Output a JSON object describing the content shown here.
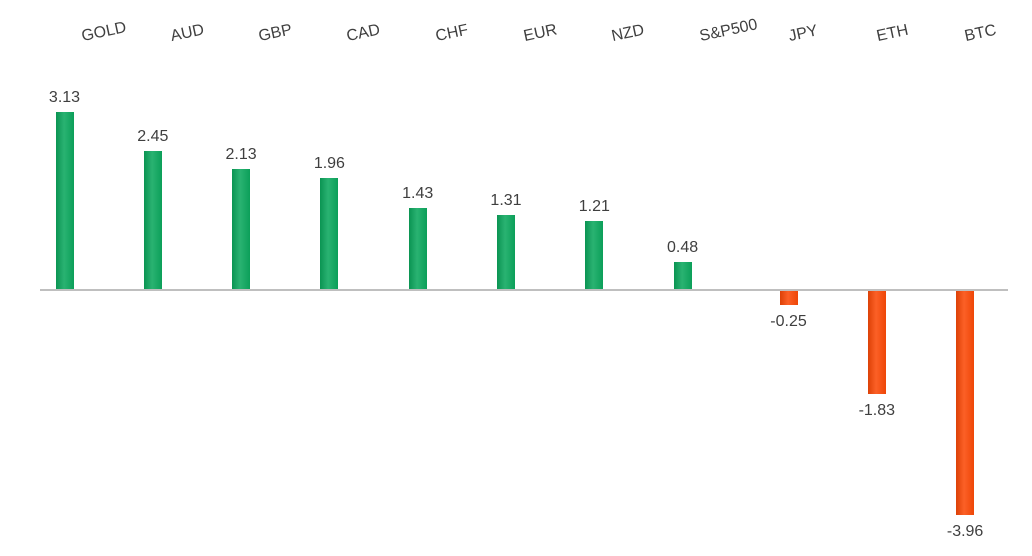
{
  "chart_data": {
    "type": "bar",
    "title": "",
    "xlabel": "",
    "ylabel": "",
    "categories": [
      "GOLD",
      "AUD",
      "GBP",
      "CAD",
      "CHF",
      "EUR",
      "NZD",
      "S&P500",
      "JPY",
      "ETH",
      "BTC"
    ],
    "values": [
      3.13,
      2.45,
      2.13,
      1.96,
      1.43,
      1.31,
      1.21,
      0.48,
      -0.25,
      -1.83,
      -3.96
    ],
    "value_labels": [
      "3.13",
      "2.45",
      "2.13",
      "1.96",
      "1.43",
      "1.31",
      "1.21",
      "0.48",
      "-0.25",
      "-1.83",
      "-3.96"
    ],
    "baseline": 0,
    "ylim": [
      -4.5,
      3.5
    ],
    "grid": false,
    "legend_position": "none",
    "category_axis_position": "top",
    "colors": {
      "positive_bar": "#0ca85e",
      "negative_bar": "#fb4a08",
      "axis_line": "#bfbfbf",
      "label_text": "#3f3f3f"
    }
  }
}
